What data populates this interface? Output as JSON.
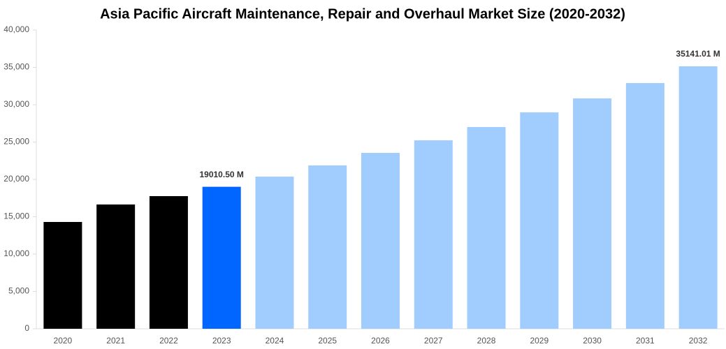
{
  "chart_data": {
    "type": "bar",
    "title": "Asia Pacific Aircraft Maintenance, Repair and Overhaul Market Size (2020-2032)",
    "categories": [
      "2020",
      "2021",
      "2022",
      "2023",
      "2024",
      "2025",
      "2026",
      "2027",
      "2028",
      "2029",
      "2030",
      "2031",
      "2032"
    ],
    "values": [
      14300,
      16640,
      17760,
      19010.5,
      20370,
      21870,
      23550,
      25230,
      27010,
      28970,
      30840,
      32900,
      35141.01
    ],
    "value_labels": [
      null,
      null,
      null,
      "19010.50 M",
      null,
      null,
      null,
      null,
      null,
      null,
      null,
      null,
      "35141.01 M"
    ],
    "colors": [
      "#000000",
      "#000000",
      "#000000",
      "#0066ff",
      "#a0cdfd",
      "#a0cdfd",
      "#a0cdfd",
      "#a0cdfd",
      "#a0cdfd",
      "#a0cdfd",
      "#a0cdfd",
      "#a0cdfd",
      "#a0cdfd"
    ],
    "ylim": [
      0,
      40000
    ],
    "yticks": [
      0,
      {
        "value": 5000,
        "label": "5,000"
      },
      {
        "value": 10000,
        "label": "10,000"
      },
      {
        "value": 15000,
        "label": "15,000"
      },
      {
        "value": 20000,
        "label": "20,000"
      },
      {
        "value": 25000,
        "label": "25,000"
      },
      {
        "value": 30000,
        "label": "30,000"
      },
      {
        "value": 35000,
        "label": "35,000"
      },
      {
        "value": 40000,
        "label": "40,000"
      }
    ],
    "grid": false
  }
}
